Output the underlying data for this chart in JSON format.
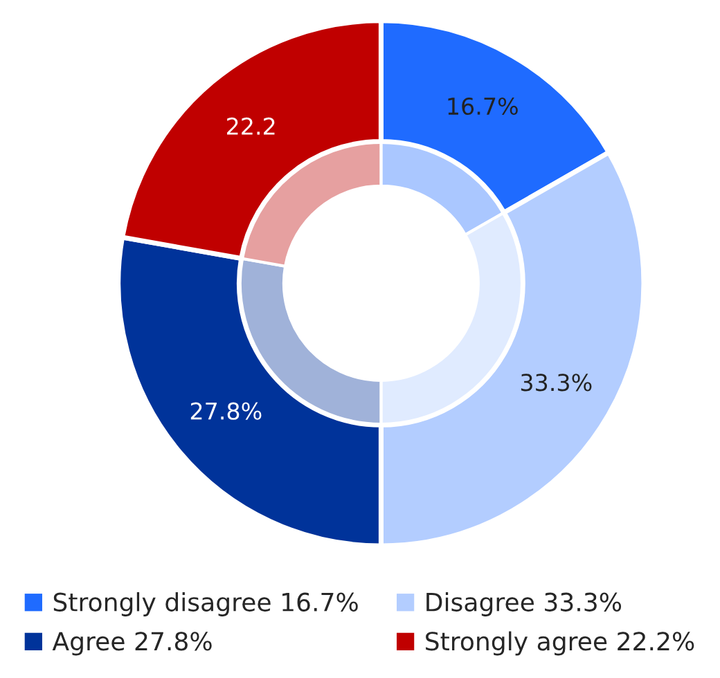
{
  "chart_data": {
    "type": "donut",
    "categories": [
      "Strongly disagree 16.7%",
      "Disagree 33.3%",
      "Agree 27.8%",
      "Strongly agree 22.2%"
    ],
    "series": [
      {
        "values": [
          16.7,
          33.3,
          27.8,
          22.2
        ],
        "colors": [
          "#aac7ff",
          "#e0ebff",
          "#a0b2d9",
          "#e6a0a0"
        ]
      },
      {
        "values": [
          16.7,
          33.3,
          27.8,
          22.2
        ],
        "colors": [
          "#1f6bff",
          "#b3cdff",
          "#00339a",
          "#c00000"
        ],
        "value_labels": [
          "16.7%",
          "33.3%",
          "27.8%",
          "22.2"
        ]
      }
    ],
    "legend": "bottom"
  }
}
